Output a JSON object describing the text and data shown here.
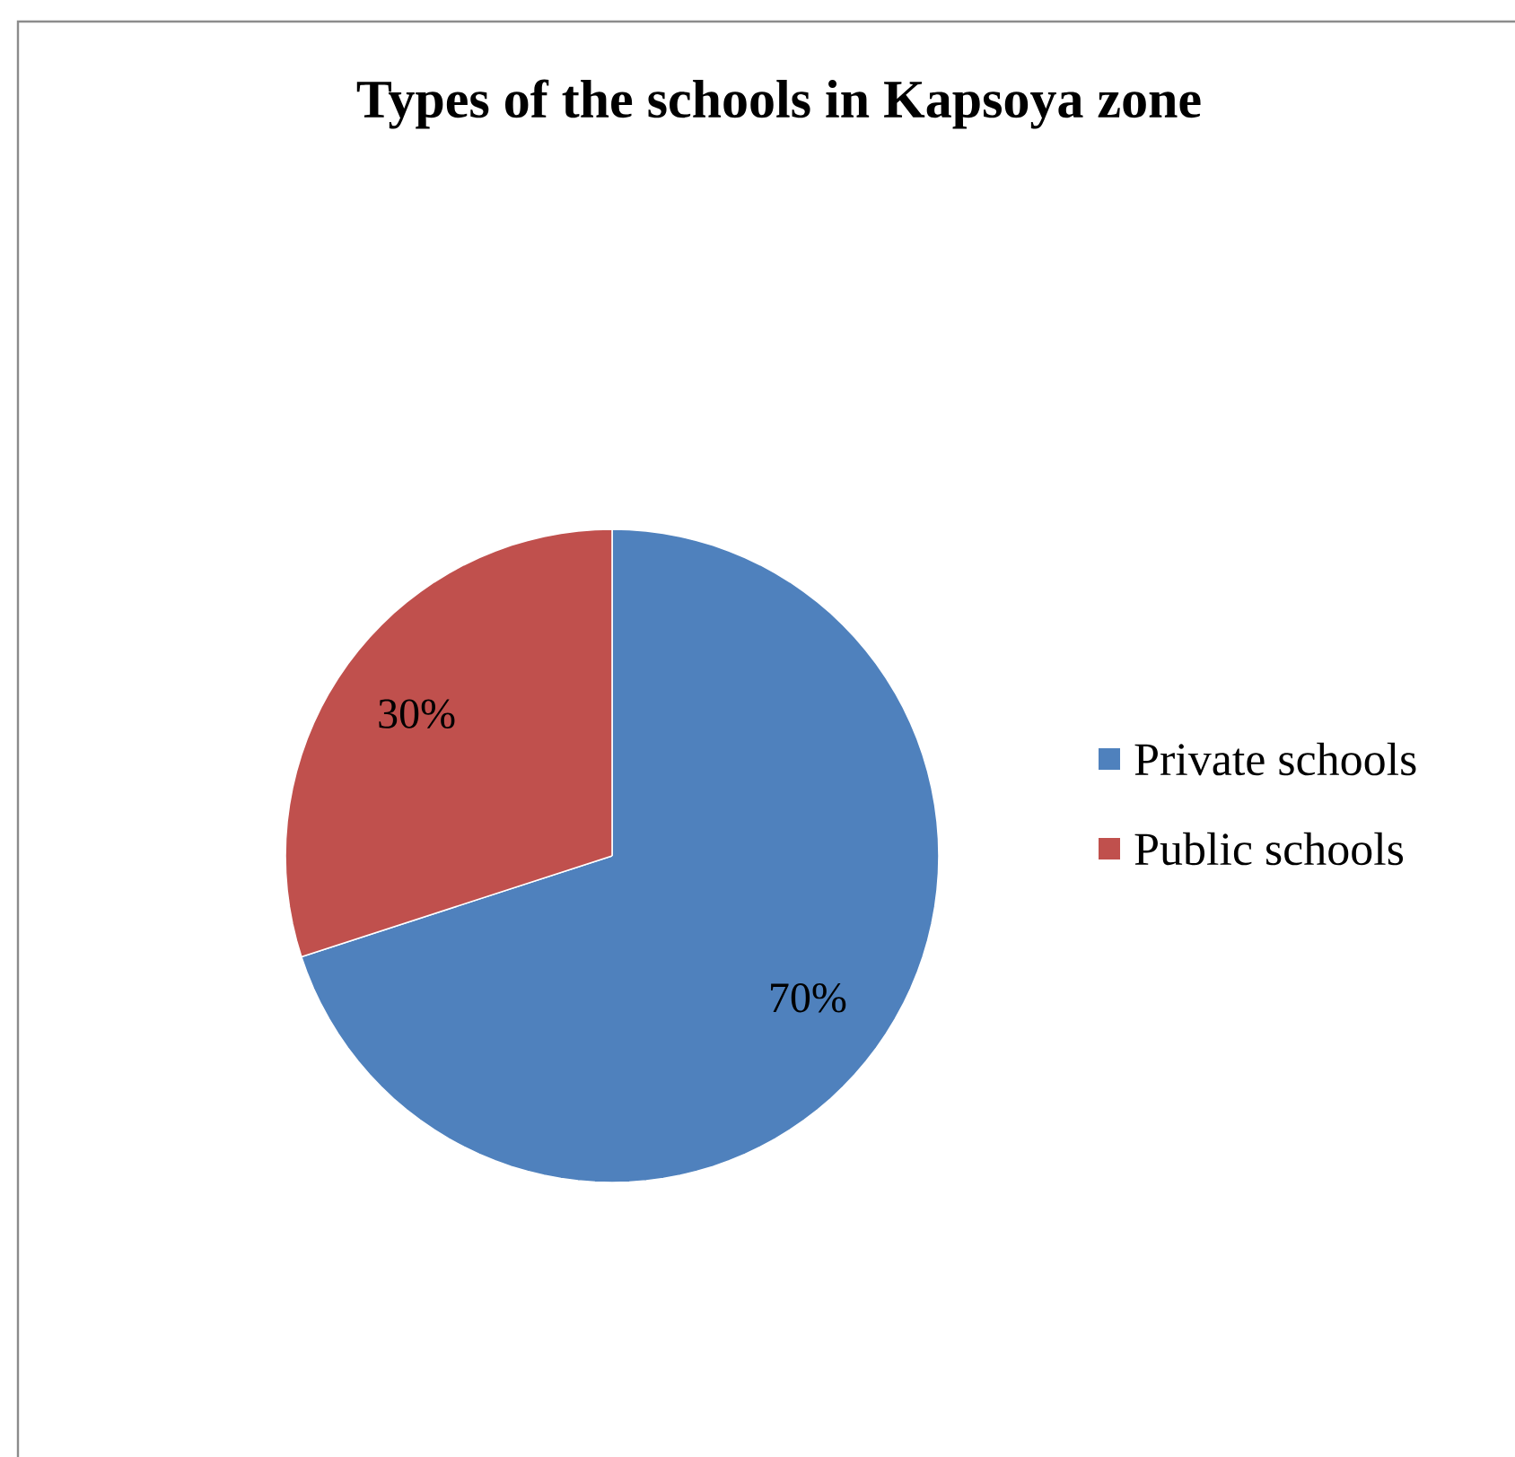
{
  "chart_data": {
    "type": "pie",
    "title": "Types of the schools in Kapsoya zone",
    "categories": [
      "Private schools",
      "Public schools"
    ],
    "values": [
      70,
      30
    ],
    "value_labels": [
      "70%",
      "30%"
    ],
    "colors": [
      "#4f81bd",
      "#c0504d"
    ],
    "legend": "right"
  }
}
